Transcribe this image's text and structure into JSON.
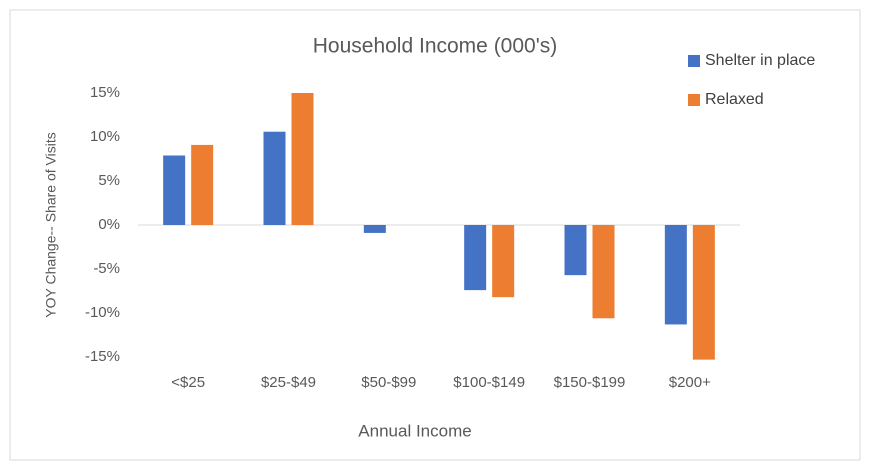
{
  "chart_data": {
    "type": "bar",
    "title": "Household Income (000's)",
    "x_label": "Annual Income",
    "y_label": "YOY Change-- Share of Visits",
    "categories": [
      "<$25",
      "$25-$49",
      "$50-$99",
      "$100-$149",
      "$150-$199",
      "$200+"
    ],
    "series": [
      {
        "name": "Shelter in place",
        "color": "#4472c4",
        "values": [
          7.9,
          10.6,
          -0.9,
          -7.4,
          -5.7,
          -11.3
        ]
      },
      {
        "name": "Relaxed",
        "color": "#ed7d31",
        "values": [
          9.1,
          15.0,
          0,
          -8.2,
          -10.6,
          -15.3
        ]
      }
    ],
    "ylim": [
      -15,
      15
    ],
    "yticks": [
      {
        "value": -15,
        "label": "-15%"
      },
      {
        "value": -10,
        "label": "-10%"
      },
      {
        "value": -5,
        "label": "-5%"
      },
      {
        "value": 0,
        "label": "0%"
      },
      {
        "value": 5,
        "label": "5%"
      },
      {
        "value": 10,
        "label": "10%"
      },
      {
        "value": 15,
        "label": "15%"
      }
    ],
    "legend": "top-right"
  }
}
